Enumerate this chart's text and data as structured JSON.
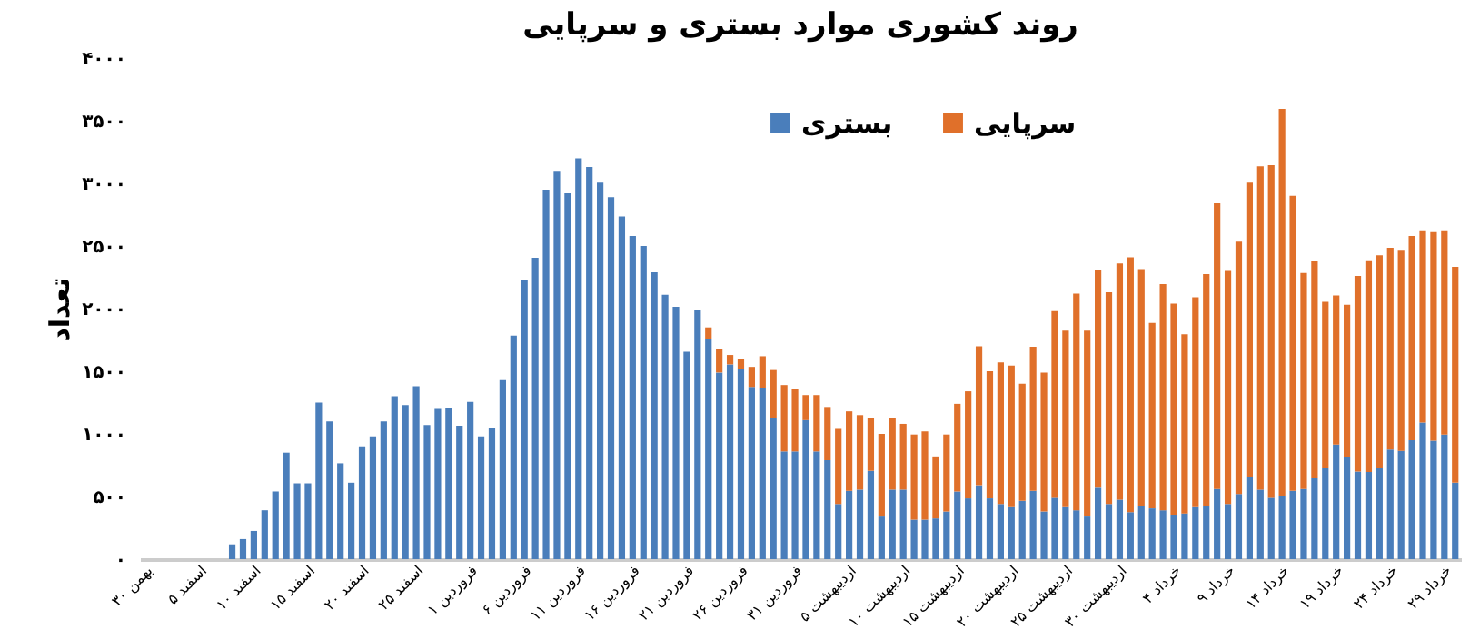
{
  "chart_data": {
    "type": "bar",
    "title": "روند کشوری موارد بستری و سرپایی",
    "ylabel": "تعداد",
    "stacked": true,
    "legend": "top right",
    "grid": false,
    "categories": [
      "۳۰ بهمن",
      null,
      null,
      null,
      null,
      "۵ اسفند",
      null,
      null,
      null,
      null,
      "۱۰ اسفند",
      null,
      null,
      null,
      null,
      "۱۵ اسفند",
      null,
      null,
      null,
      null,
      "۲۰ اسفند",
      null,
      null,
      null,
      null,
      "۲۵ اسفند",
      null,
      null,
      null,
      null,
      "۱ فروردین",
      null,
      null,
      null,
      null,
      "۶ فروردین",
      null,
      null,
      null,
      null,
      "۱۱ فروردین",
      null,
      null,
      null,
      null,
      "۱۶ فروردین",
      null,
      null,
      null,
      null,
      "۲۱ فروردین",
      null,
      null,
      null,
      null,
      "۲۶ فروردین",
      null,
      null,
      null,
      null,
      "۳۱ فروردین",
      null,
      null,
      null,
      null,
      "۵ اردیبهشت",
      null,
      null,
      null,
      null,
      "۱۰ اردیبهشت",
      null,
      null,
      null,
      null,
      "۱۵ اردیبهشت",
      null,
      null,
      null,
      null,
      "۲۰ اردیبهشت",
      null,
      null,
      null,
      null,
      "۲۵ اردیبهشت",
      null,
      null,
      null,
      null,
      "۳۰ اردیبهشت",
      null,
      null,
      null,
      null,
      "۴ خرداد",
      null,
      null,
      null,
      null,
      "۹ خرداد",
      null,
      null,
      null,
      null,
      "۱۴ خرداد",
      null,
      null,
      null,
      null,
      "۱۹ خرداد",
      null,
      null,
      null,
      null,
      "۲۴ خرداد",
      null,
      null,
      null,
      null,
      "۲۹ خرداد",
      null
    ],
    "ylim": [
      0,
      4000
    ],
    "yticks": [
      {
        "value": 0,
        "label": "۰"
      },
      {
        "value": 500,
        "label": "۵۰۰"
      },
      {
        "value": 1000,
        "label": "۱۰۰۰"
      },
      {
        "value": 1500,
        "label": "۱۵۰۰"
      },
      {
        "value": 2000,
        "label": "۲۰۰۰"
      },
      {
        "value": 2500,
        "label": "۲۵۰۰"
      },
      {
        "value": 3000,
        "label": "۳۰۰۰"
      },
      {
        "value": 3500,
        "label": "۳۵۰۰"
      },
      {
        "value": 4000,
        "label": "۴۰۰۰"
      }
    ],
    "series": [
      {
        "name": "بستری",
        "color": "#4a7ebb",
        "values": [
          0,
          0,
          0,
          0,
          0,
          0,
          0,
          0,
          118,
          160,
          225,
          390,
          540,
          850,
          605,
          605,
          1250,
          1100,
          765,
          610,
          900,
          980,
          1100,
          1300,
          1230,
          1380,
          1070,
          1200,
          1210,
          1065,
          1255,
          980,
          1045,
          1430,
          1785,
          2230,
          2405,
          2950,
          3100,
          2920,
          3200,
          3130,
          3005,
          2890,
          2735,
          2580,
          2500,
          2290,
          2110,
          2015,
          1655,
          1990,
          1760,
          1490,
          1555,
          1515,
          1375,
          1365,
          1125,
          860,
          860,
          1110,
          860,
          790,
          440,
          545,
          555,
          705,
          340,
          555,
          555,
          315,
          315,
          325,
          380,
          540,
          485,
          590,
          485,
          440,
          415,
          465,
          545,
          380,
          490,
          415,
          390,
          340,
          570,
          440,
          475,
          375,
          425,
          405,
          390,
          355,
          365,
          415,
          425,
          560,
          440,
          520,
          660,
          555,
          490,
          500,
          545,
          560,
          645,
          725,
          915,
          815,
          700,
          695,
          725,
          875,
          865,
          950,
          1090,
          945,
          995,
          610
        ]
      },
      {
        "name": "سرپایی",
        "color": "#e0702a",
        "values": [
          null,
          null,
          null,
          null,
          null,
          null,
          null,
          null,
          null,
          null,
          null,
          null,
          null,
          null,
          null,
          null,
          null,
          null,
          null,
          null,
          null,
          null,
          null,
          null,
          null,
          null,
          null,
          null,
          null,
          null,
          null,
          null,
          null,
          null,
          null,
          null,
          null,
          null,
          null,
          null,
          null,
          null,
          null,
          null,
          null,
          null,
          null,
          null,
          null,
          null,
          null,
          null,
          90,
          185,
          75,
          80,
          160,
          255,
          385,
          530,
          495,
          200,
          450,
          425,
          600,
          635,
          595,
          425,
          660,
          570,
          525,
          680,
          705,
          495,
          615,
          700,
          855,
          1110,
          1015,
          1130,
          1130,
          935,
          1150,
          1110,
          1490,
          1410,
          1730,
          1485,
          1740,
          1690,
          1885,
          2035,
          1890,
          1480,
          1805,
          1685,
          1430,
          1675,
          1850,
          2280,
          1860,
          2015,
          2345,
          2580,
          2655,
          3095,
          2355,
          1725,
          1735,
          1330,
          1190,
          1215,
          1560,
          1690,
          1700,
          1610,
          1605,
          1630,
          1535,
          1665,
          1630,
          1724
        ]
      }
    ]
  }
}
